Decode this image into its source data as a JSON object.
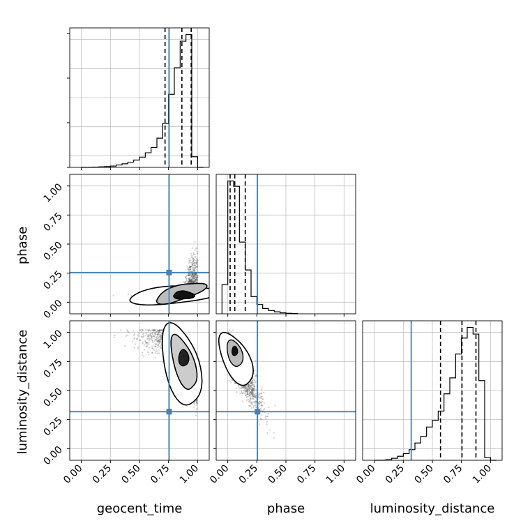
{
  "chart_data": {
    "type": "corner",
    "parameters": [
      "geocent_time",
      "phase",
      "luminosity_distance"
    ],
    "axis_range": [
      -0.1,
      1.1
    ],
    "tick_values": [
      0.0,
      0.25,
      0.5,
      0.75,
      1.0
    ],
    "tick_labels": [
      "0.00",
      "0.25",
      "0.50",
      "0.75",
      "1.00"
    ],
    "grid": true,
    "colors": {
      "truth": "#4682b4",
      "hist": "#000000",
      "points": "#555555",
      "grid": "#c0c0c0"
    },
    "truths": {
      "geocent_time": 0.755,
      "phase": 0.255,
      "luminosity_distance": 0.318
    },
    "marginals": {
      "geocent_time": {
        "bin_edges": [
          0.0,
          0.05,
          0.1,
          0.15,
          0.2,
          0.25,
          0.3,
          0.35,
          0.4,
          0.45,
          0.5,
          0.55,
          0.6,
          0.65,
          0.7,
          0.75,
          0.8,
          0.85,
          0.9,
          0.95,
          1.0,
          1.05
        ],
        "counts": [
          0.0,
          0.0,
          0.002,
          0.004,
          0.006,
          0.01,
          0.018,
          0.027,
          0.039,
          0.055,
          0.077,
          0.11,
          0.15,
          0.22,
          0.33,
          0.55,
          0.75,
          0.95,
          1.0,
          0.08,
          0.0
        ],
        "quantiles": [
          0.72,
          0.865,
          0.945
        ]
      },
      "phase": {
        "bin_edges": [
          -0.05,
          0.0,
          0.05,
          0.1,
          0.15,
          0.2,
          0.25,
          0.3,
          0.35,
          0.4,
          0.45,
          0.5,
          0.55,
          0.6
        ],
        "counts": [
          0.22,
          1.0,
          0.96,
          0.54,
          0.33,
          0.13,
          0.07,
          0.04,
          0.025,
          0.015,
          0.008,
          0.004,
          0.002
        ],
        "quantiles": [
          0.02,
          0.06,
          0.15
        ]
      },
      "luminosity_distance": {
        "bin_edges": [
          0.0,
          0.05,
          0.1,
          0.15,
          0.2,
          0.25,
          0.3,
          0.35,
          0.4,
          0.45,
          0.5,
          0.55,
          0.6,
          0.65,
          0.7,
          0.75,
          0.8,
          0.85,
          0.9,
          0.95,
          1.0,
          1.05
        ],
        "counts": [
          0.0,
          0.0,
          0.005,
          0.015,
          0.03,
          0.05,
          0.08,
          0.13,
          0.18,
          0.25,
          0.3,
          0.37,
          0.5,
          0.62,
          0.8,
          0.92,
          1.0,
          0.95,
          0.6,
          0.02,
          0.0
        ],
        "quantiles": [
          0.57,
          0.755,
          0.875
        ]
      }
    }
  }
}
